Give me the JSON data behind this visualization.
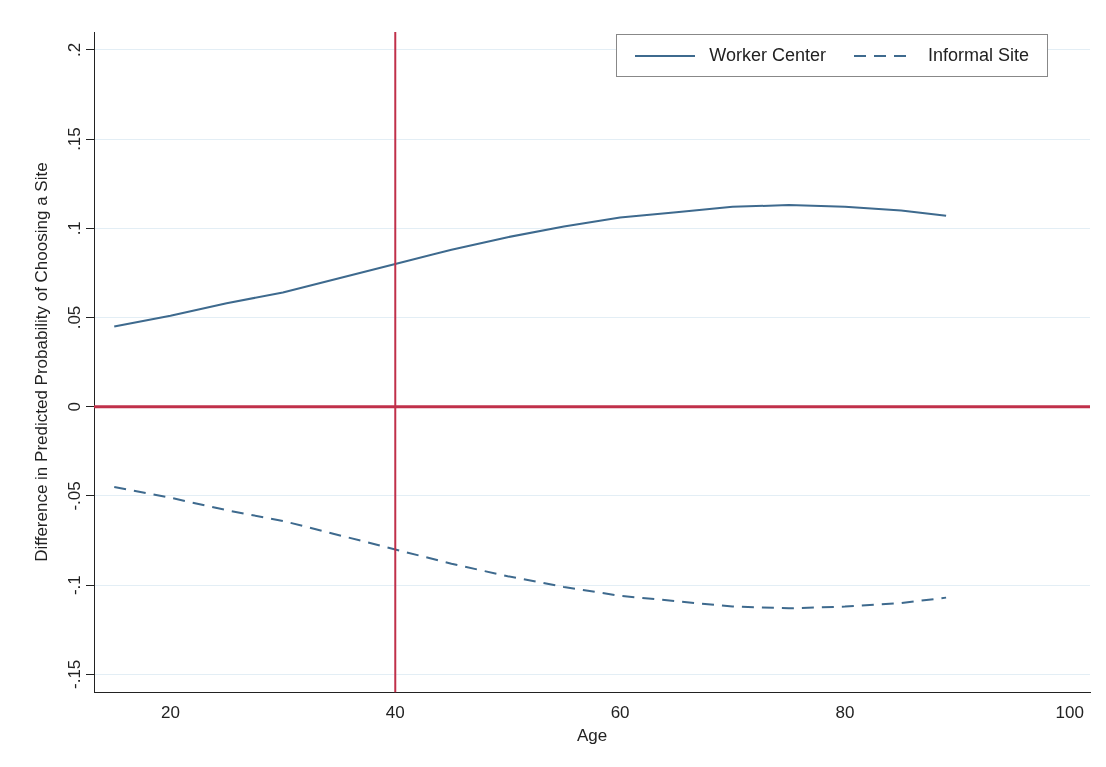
{
  "chart_data": {
    "type": "line",
    "xlabel": "Age",
    "ylabel": "Difference in Predicted Probability of Choosing a Site",
    "x": [
      15,
      20,
      25,
      30,
      35,
      40,
      45,
      50,
      55,
      60,
      65,
      70,
      75,
      80,
      85,
      89
    ],
    "series": [
      {
        "name": "Worker Center",
        "color": "#3e6a8e",
        "line_style": "solid",
        "values": [
          0.045,
          0.051,
          0.058,
          0.064,
          0.072,
          0.08,
          0.088,
          0.095,
          0.101,
          0.106,
          0.109,
          0.112,
          0.113,
          0.112,
          0.11,
          0.107
        ]
      },
      {
        "name": "Informal Site",
        "color": "#3e6a8e",
        "line_style": "dashed",
        "values": [
          -0.045,
          -0.051,
          -0.058,
          -0.064,
          -0.072,
          -0.08,
          -0.088,
          -0.095,
          -0.101,
          -0.106,
          -0.109,
          -0.112,
          -0.113,
          -0.112,
          -0.11,
          -0.107
        ]
      }
    ],
    "xlim": [
      13.2,
      101.8
    ],
    "xticks": [
      20,
      40,
      60,
      80,
      100
    ],
    "ylim": [
      -0.16,
      0.21
    ],
    "yticks": [
      {
        "value": -0.15,
        "label": "-.15"
      },
      {
        "value": -0.1,
        "label": "-.1"
      },
      {
        "value": -0.05,
        "label": "-.05"
      },
      {
        "value": 0,
        "label": "0"
      },
      {
        "value": 0.05,
        "label": ".05"
      },
      {
        "value": 0.1,
        "label": ".1"
      },
      {
        "value": 0.15,
        "label": ".15"
      },
      {
        "value": 0.2,
        "label": ".2"
      }
    ],
    "grid": "y",
    "legend": "top right",
    "marker": "none",
    "ref_lines": [
      {
        "axis": "x",
        "value": 40,
        "color": "#c0304a"
      },
      {
        "axis": "y",
        "value": 0,
        "color": "#c0304a"
      }
    ]
  }
}
